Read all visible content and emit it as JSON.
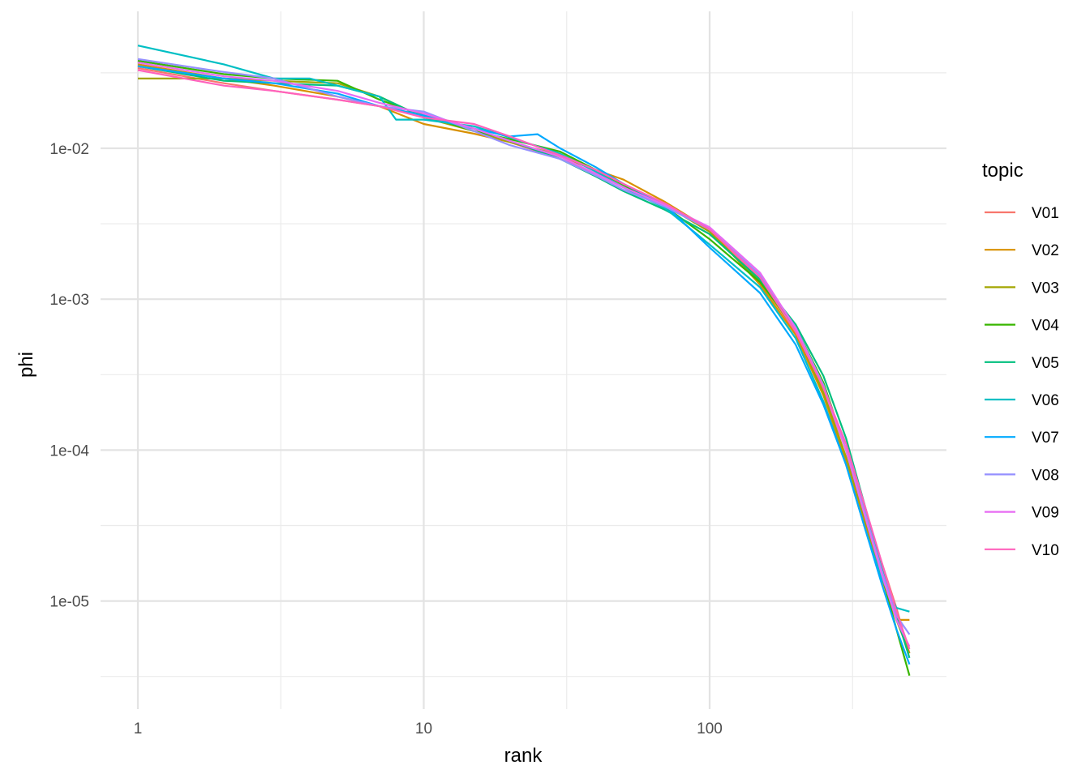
{
  "chart_data": {
    "type": "line",
    "title": "",
    "xlabel": "rank",
    "ylabel": "phi",
    "x_scale": "log10",
    "y_scale": "log10",
    "xlim": [
      1,
      520
    ],
    "ylim": [
      2.2e-06,
      0.065
    ],
    "x_ticks": [
      1,
      10,
      100
    ],
    "x_tick_labels": [
      "1",
      "10",
      "100"
    ],
    "y_ticks": [
      1e-05,
      0.0001,
      0.001,
      0.01
    ],
    "y_tick_labels": [
      "1e-05",
      "1e-04",
      "1e-03",
      "1e-02"
    ],
    "grid": true,
    "legend": {
      "title": "topic",
      "position": "right"
    },
    "series": [
      {
        "name": "V01",
        "color": "#F8766D",
        "x": [
          1,
          2,
          3,
          5,
          7,
          10,
          15,
          20,
          30,
          40,
          50,
          70,
          100,
          150,
          200,
          250,
          300,
          350,
          400,
          450,
          500
        ],
        "y": [
          0.034,
          0.027,
          0.024,
          0.021,
          0.019,
          0.0165,
          0.0135,
          0.011,
          0.0085,
          0.0068,
          0.0055,
          0.0042,
          0.0028,
          0.00135,
          0.0006,
          0.00025,
          0.0001,
          4e-05,
          1.8e-05,
          9e-06,
          4.5e-06
        ]
      },
      {
        "name": "V02",
        "color": "#D89000",
        "x": [
          1,
          2,
          3,
          5,
          7,
          10,
          15,
          20,
          30,
          40,
          50,
          70,
          100,
          150,
          200,
          250,
          300,
          350,
          400,
          450,
          500
        ],
        "y": [
          0.036,
          0.029,
          0.026,
          0.022,
          0.019,
          0.0145,
          0.0125,
          0.011,
          0.0088,
          0.0072,
          0.0062,
          0.0044,
          0.0029,
          0.00125,
          0.00058,
          0.00023,
          8.5e-05,
          3.2e-05,
          1.4e-05,
          7.5e-06,
          7.5e-06
        ]
      },
      {
        "name": "V03",
        "color": "#A3A500",
        "x": [
          1,
          2,
          3,
          5,
          7,
          10,
          15,
          20,
          30,
          40,
          50,
          70,
          100,
          150,
          200,
          250,
          300,
          350,
          400,
          450,
          500
        ],
        "y": [
          0.029,
          0.029,
          0.028,
          0.027,
          0.022,
          0.016,
          0.013,
          0.011,
          0.009,
          0.0072,
          0.0058,
          0.0042,
          0.0028,
          0.0013,
          0.00062,
          0.00024,
          9e-05,
          3.4e-05,
          1.5e-05,
          7.5e-06,
          4.5e-06
        ]
      },
      {
        "name": "V04",
        "color": "#39B600",
        "x": [
          1,
          2,
          3,
          5,
          7,
          10,
          15,
          20,
          30,
          40,
          50,
          70,
          100,
          150,
          200,
          250,
          300,
          350,
          400,
          450,
          500
        ],
        "y": [
          0.038,
          0.031,
          0.029,
          0.028,
          0.021,
          0.0165,
          0.013,
          0.0115,
          0.0095,
          0.0072,
          0.0057,
          0.0041,
          0.0025,
          0.0013,
          0.00065,
          0.00028,
          0.0001,
          3.6e-05,
          1.5e-05,
          6.5e-06,
          3.2e-06
        ]
      },
      {
        "name": "V05",
        "color": "#00BF7D",
        "x": [
          1,
          2,
          3,
          5,
          7,
          10,
          15,
          20,
          30,
          40,
          50,
          70,
          100,
          150,
          200,
          250,
          300,
          350,
          400,
          450,
          500
        ],
        "y": [
          0.035,
          0.028,
          0.027,
          0.026,
          0.022,
          0.016,
          0.0135,
          0.0112,
          0.0085,
          0.0065,
          0.0052,
          0.0039,
          0.0027,
          0.00135,
          0.00068,
          0.00031,
          0.00012,
          4.2e-05,
          1.7e-05,
          8e-06,
          4.2e-06
        ]
      },
      {
        "name": "V06",
        "color": "#00BFC4",
        "x": [
          1,
          2,
          3,
          4,
          5,
          7,
          8,
          10,
          15,
          20,
          30,
          40,
          50,
          70,
          100,
          150,
          200,
          250,
          300,
          350,
          400,
          450,
          500
        ],
        "y": [
          0.048,
          0.036,
          0.029,
          0.029,
          0.026,
          0.022,
          0.0155,
          0.0155,
          0.014,
          0.0118,
          0.0092,
          0.007,
          0.0055,
          0.004,
          0.0023,
          0.0012,
          0.00055,
          0.00021,
          8e-05,
          3e-05,
          1.4e-05,
          9e-06,
          8.5e-06
        ]
      },
      {
        "name": "V07",
        "color": "#00A9FF",
        "x": [
          1,
          2,
          3,
          5,
          7,
          10,
          15,
          20,
          25,
          30,
          40,
          50,
          70,
          100,
          150,
          200,
          250,
          300,
          350,
          400,
          450,
          500
        ],
        "y": [
          0.035,
          0.029,
          0.027,
          0.023,
          0.019,
          0.0165,
          0.0135,
          0.012,
          0.0124,
          0.01,
          0.0075,
          0.0058,
          0.0042,
          0.0022,
          0.0011,
          0.0005,
          0.0002,
          8e-05,
          3e-05,
          1.3e-05,
          6.5e-06,
          3.8e-06
        ]
      },
      {
        "name": "V08",
        "color": "#9590FF",
        "x": [
          1,
          2,
          3,
          5,
          7,
          10,
          15,
          20,
          30,
          40,
          50,
          70,
          100,
          150,
          200,
          250,
          300,
          350,
          400,
          450,
          500
        ],
        "y": [
          0.039,
          0.032,
          0.029,
          0.022,
          0.019,
          0.0175,
          0.013,
          0.0105,
          0.0085,
          0.0066,
          0.0053,
          0.0041,
          0.0029,
          0.00145,
          0.00065,
          0.00027,
          0.0001,
          3.8e-05,
          1.6e-05,
          8e-06,
          6e-06
        ]
      },
      {
        "name": "V09",
        "color": "#E76BF3",
        "x": [
          1,
          2,
          3,
          5,
          7,
          10,
          15,
          20,
          30,
          40,
          50,
          70,
          100,
          150,
          200,
          250,
          300,
          350,
          400,
          450,
          500
        ],
        "y": [
          0.037,
          0.03,
          0.028,
          0.024,
          0.02,
          0.017,
          0.0135,
          0.0112,
          0.0088,
          0.0068,
          0.0055,
          0.0042,
          0.003,
          0.0015,
          0.00064,
          0.00026,
          0.0001,
          3.6e-05,
          1.5e-05,
          7.5e-06,
          5e-06
        ]
      },
      {
        "name": "V10",
        "color": "#FF62BC",
        "x": [
          1,
          2,
          3,
          5,
          7,
          10,
          15,
          20,
          30,
          40,
          50,
          70,
          100,
          150,
          200,
          250,
          300,
          350,
          400,
          450,
          500
        ],
        "y": [
          0.033,
          0.026,
          0.024,
          0.021,
          0.019,
          0.016,
          0.0145,
          0.012,
          0.009,
          0.0072,
          0.0058,
          0.0043,
          0.0029,
          0.0014,
          0.00061,
          0.00026,
          0.00011,
          4.2e-05,
          1.8e-05,
          8.5e-06,
          4.8e-06
        ]
      }
    ]
  }
}
